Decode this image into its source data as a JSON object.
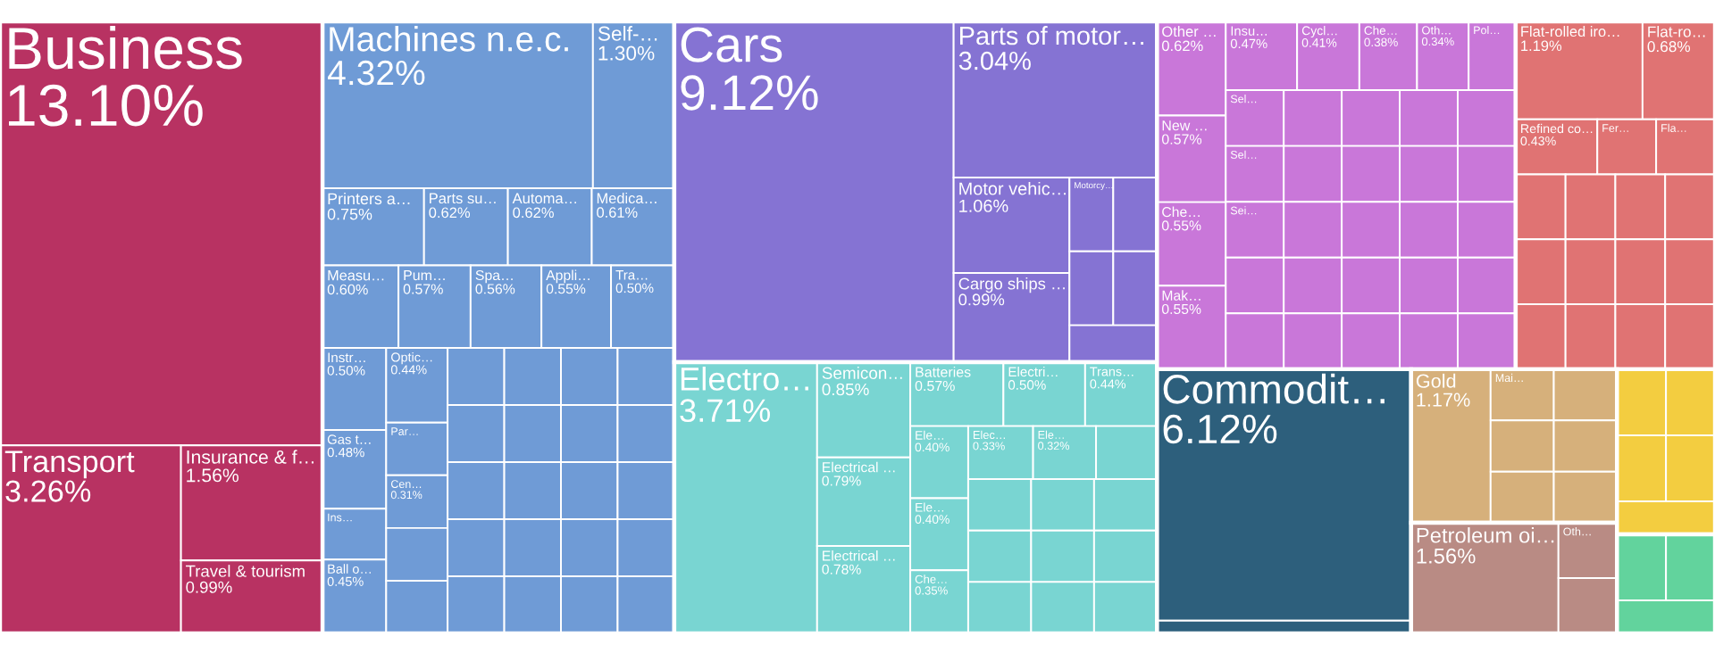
{
  "chart_data": {
    "type": "other",
    "categories": [
      "Business",
      "Transport",
      "Insurance & f…",
      "Travel & tourism",
      "Machines n.e.c.",
      "Self-…",
      "Printers a…",
      "Parts su…",
      "Automa…",
      "Medica…",
      "Measu…",
      "Pum…",
      "Spa…",
      "Appli…",
      "Tra…",
      "Instr…",
      "Gas t…",
      "Ins…",
      "Ball o…",
      "Optic…",
      "Par…",
      "Cen…",
      null,
      null,
      null,
      null,
      null,
      null,
      null,
      null,
      null,
      null,
      null,
      null,
      null,
      null,
      null,
      null,
      null,
      null,
      null,
      null,
      null,
      null,
      "Cars",
      "Parts of motor…",
      "Motor vehic…",
      "Cargo ships …",
      "Motorcy…",
      null,
      null,
      null,
      null,
      "Electro…",
      "Semicon…",
      "Electrical …",
      "Electrical …",
      "Batteries",
      "Electri…",
      "Trans…",
      "Ele…",
      "Ele…",
      "Che…",
      "Elec…",
      "Ele…",
      null,
      null,
      null,
      null,
      null,
      null,
      null,
      null,
      null,
      null,
      "Other …",
      "New …",
      "Che…",
      "Mak…",
      "Insu…",
      "Cycl…",
      "Che…",
      "Oth…",
      "Pol…",
      "Sel…",
      "Sel…",
      "Sei…",
      null,
      null,
      null,
      null,
      null,
      null,
      null,
      null,
      null,
      null,
      null,
      null,
      null,
      null,
      null,
      null,
      null,
      null,
      null,
      null,
      null,
      null,
      "Flat-rolled iro…",
      "Flat-ro…",
      "Refined co…",
      "Fer…",
      "Fla…",
      null,
      null,
      null,
      null,
      null,
      null,
      null,
      null,
      null,
      null,
      null,
      null,
      "Commodit…",
      null,
      "Gold",
      "Mai…",
      null,
      null,
      null,
      null,
      null,
      "Petroleum oi…",
      "Oth…",
      null,
      null,
      null,
      null,
      null,
      null,
      null,
      null,
      null
    ],
    "values": [
      13.1,
      3.26,
      1.56,
      0.99,
      4.32,
      1.3,
      0.75,
      0.62,
      0.62,
      0.61,
      0.6,
      0.57,
      0.56,
      0.55,
      0.5,
      0.5,
      0.48,
      null,
      0.45,
      0.44,
      null,
      0.31,
      null,
      null,
      null,
      null,
      null,
      null,
      null,
      null,
      null,
      null,
      null,
      null,
      null,
      null,
      null,
      null,
      null,
      null,
      null,
      null,
      null,
      null,
      9.12,
      3.04,
      1.06,
      0.99,
      null,
      null,
      null,
      null,
      null,
      3.71,
      0.85,
      0.79,
      0.78,
      0.57,
      0.5,
      0.44,
      0.4,
      0.4,
      0.35,
      0.33,
      0.32,
      null,
      null,
      null,
      null,
      null,
      null,
      null,
      null,
      null,
      null,
      0.62,
      0.57,
      0.55,
      0.55,
      0.47,
      0.41,
      0.38,
      0.34,
      null,
      null,
      null,
      null,
      null,
      null,
      null,
      null,
      null,
      null,
      null,
      null,
      null,
      null,
      null,
      null,
      null,
      null,
      null,
      null,
      null,
      null,
      null,
      null,
      null,
      null,
      1.19,
      0.68,
      0.43,
      null,
      null,
      null,
      null,
      null,
      null,
      null,
      null,
      null,
      null,
      null,
      null,
      null,
      null,
      6.12,
      null,
      1.17,
      null,
      null,
      null,
      null,
      null,
      null,
      1.56,
      null,
      null,
      null,
      null,
      null,
      null,
      null,
      null,
      null,
      null
    ],
    "value_labels": [
      "13.10%",
      "3.26%",
      "1.56%",
      "0.99%",
      "4.32%",
      "1.30%",
      "0.75%",
      "0.62%",
      "0.62%",
      "0.61%",
      "0.60%",
      "0.57%",
      "0.56%",
      "0.55%",
      "0.50%",
      "0.50%",
      "0.48%",
      null,
      "0.45%",
      "0.44%",
      null,
      "0.31%",
      null,
      null,
      null,
      null,
      null,
      null,
      null,
      null,
      null,
      null,
      null,
      null,
      null,
      null,
      null,
      null,
      null,
      null,
      null,
      null,
      null,
      null,
      "9.12%",
      "3.04%",
      "1.06%",
      "0.99%",
      null,
      null,
      null,
      null,
      null,
      "3.71%",
      "0.85%",
      "0.79%",
      "0.78%",
      "0.57%",
      "0.50%",
      "0.44%",
      "0.40%",
      "0.40%",
      "0.35%",
      "0.33%",
      "0.32%",
      null,
      null,
      null,
      null,
      null,
      null,
      null,
      null,
      null,
      null,
      "0.62%",
      "0.57%",
      "0.55%",
      "0.55%",
      "0.47%",
      "0.41%",
      "0.38%",
      "0.34%",
      null,
      null,
      null,
      null,
      null,
      null,
      null,
      null,
      null,
      null,
      null,
      null,
      null,
      null,
      null,
      null,
      null,
      null,
      null,
      null,
      null,
      null,
      null,
      null,
      null,
      null,
      "1.19%",
      "0.68%",
      "0.43%",
      null,
      null,
      null,
      null,
      null,
      null,
      null,
      null,
      null,
      null,
      null,
      null,
      null,
      null,
      "6.12%",
      null,
      "1.17%",
      null,
      null,
      null,
      null,
      null,
      null,
      "1.56%",
      null,
      null,
      null,
      null,
      null,
      null,
      null,
      null,
      null,
      null
    ],
    "colors": [
      "#b83262",
      "#b83262",
      "#b83262",
      "#b83262",
      "#6f9bd6",
      "#6f9bd6",
      "#6f9bd6",
      "#6f9bd6",
      "#6f9bd6",
      "#6f9bd6",
      "#6f9bd6",
      "#6f9bd6",
      "#6f9bd6",
      "#6f9bd6",
      "#6f9bd6",
      "#6f9bd6",
      "#6f9bd6",
      "#6f9bd6",
      "#6f9bd6",
      "#6f9bd6",
      "#6f9bd6",
      "#6f9bd6",
      "#6f9bd6",
      "#6f9bd6",
      "#6f9bd6",
      "#6f9bd6",
      "#6f9bd6",
      "#6f9bd6",
      "#6f9bd6",
      "#6f9bd6",
      "#6f9bd6",
      "#6f9bd6",
      "#6f9bd6",
      "#6f9bd6",
      "#6f9bd6",
      "#6f9bd6",
      "#6f9bd6",
      "#6f9bd6",
      "#6f9bd6",
      "#6f9bd6",
      "#6f9bd6",
      "#6f9bd6",
      "#6f9bd6",
      "#6f9bd6",
      "#8573d3",
      "#8573d3",
      "#8573d3",
      "#8573d3",
      "#8573d3",
      "#8573d3",
      "#8573d3",
      "#8573d3",
      "#8573d3",
      "#79d5d2",
      "#79d5d2",
      "#79d5d2",
      "#79d5d2",
      "#79d5d2",
      "#79d5d2",
      "#79d5d2",
      "#79d5d2",
      "#79d5d2",
      "#79d5d2",
      "#79d5d2",
      "#79d5d2",
      "#79d5d2",
      "#79d5d2",
      "#79d5d2",
      "#79d5d2",
      "#79d5d2",
      "#79d5d2",
      "#79d5d2",
      "#79d5d2",
      "#79d5d2",
      "#79d5d2",
      "#c977d9",
      "#c977d9",
      "#c977d9",
      "#c977d9",
      "#c977d9",
      "#c977d9",
      "#c977d9",
      "#c977d9",
      "#c977d9",
      "#c977d9",
      "#c977d9",
      "#c977d9",
      "#c977d9",
      "#c977d9",
      "#c977d9",
      "#c977d9",
      "#c977d9",
      "#c977d9",
      "#c977d9",
      "#c977d9",
      "#c977d9",
      "#c977d9",
      "#c977d9",
      "#c977d9",
      "#c977d9",
      "#c977d9",
      "#c977d9",
      "#c977d9",
      "#c977d9",
      "#c977d9",
      "#c977d9",
      "#c977d9",
      "#c977d9",
      "#c977d9",
      "#e07373",
      "#e07373",
      "#e07373",
      "#e07373",
      "#e07373",
      "#e07373",
      "#e07373",
      "#e07373",
      "#e07373",
      "#e07373",
      "#e07373",
      "#e07373",
      "#e07373",
      "#e07373",
      "#e07373",
      "#e07373",
      "#e07373",
      "#2d5f7c",
      "#2d5f7c",
      "#d6b07b",
      "#d6b07b",
      "#d6b07b",
      "#d6b07b",
      "#d6b07b",
      "#d6b07b",
      "#d6b07b",
      "#b98b84",
      "#b98b84",
      "#b98b84",
      "#f3cd40",
      "#f3cd40",
      "#f3cd40",
      "#f3cd40",
      "#f3cd40",
      "#62d39d",
      "#62d39d",
      "#62d39d"
    ]
  }
}
